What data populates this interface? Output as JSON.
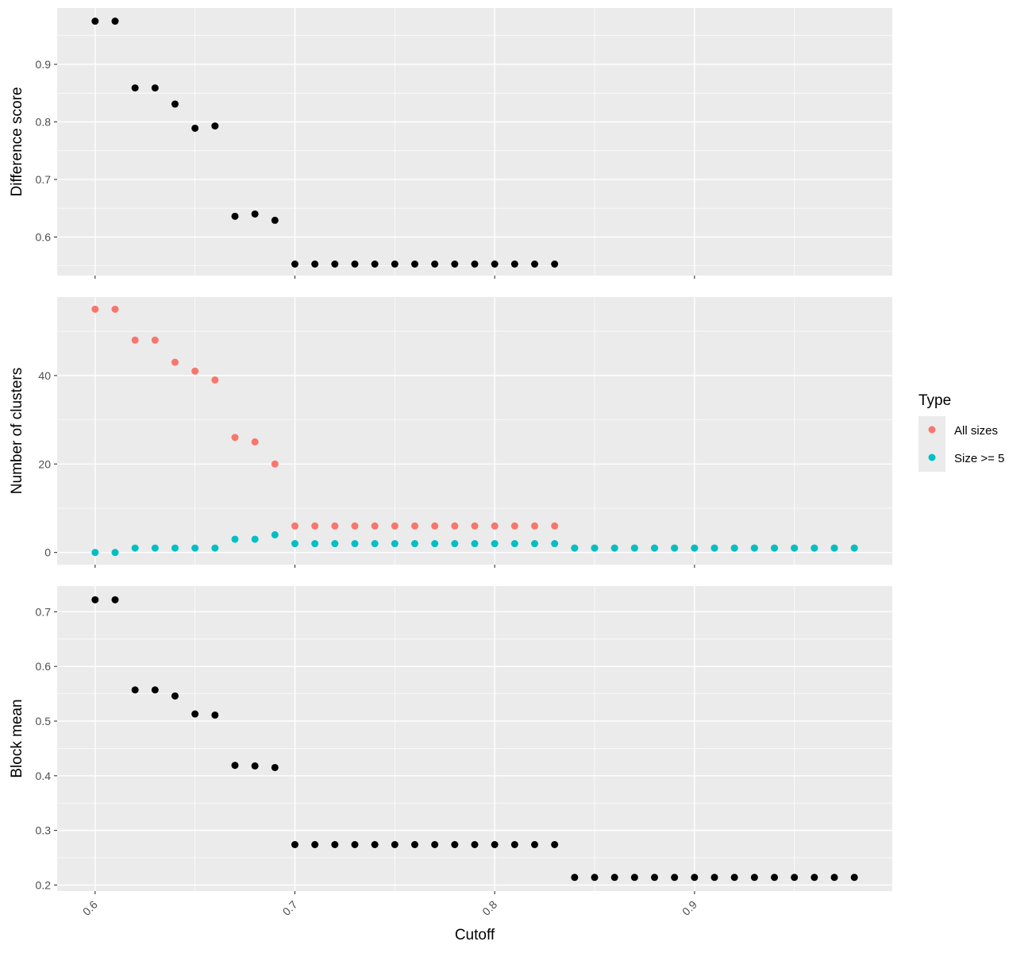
{
  "chart_data": {
    "type": "scatter",
    "x_axis": {
      "label": "Cutoff",
      "range": [
        0.581,
        0.999
      ],
      "ticks": [
        0.6,
        0.7,
        0.8,
        0.9
      ],
      "tick_labels": [
        "0.6",
        "0.7",
        "0.8",
        "0.9"
      ],
      "tick_label_angle": -45
    },
    "x": [
      0.6,
      0.61,
      0.62,
      0.63,
      0.64,
      0.65,
      0.66,
      0.67,
      0.68,
      0.69,
      0.7,
      0.71,
      0.72,
      0.73,
      0.74,
      0.75,
      0.76,
      0.77,
      0.78,
      0.79,
      0.8,
      0.81,
      0.82,
      0.83,
      0.84,
      0.85,
      0.86,
      0.87,
      0.88,
      0.89,
      0.9,
      0.91,
      0.92,
      0.93,
      0.94,
      0.95,
      0.96,
      0.97,
      0.98
    ],
    "grid": true,
    "panels": [
      {
        "ylabel": "Difference score",
        "ylim": [
          0.533,
          0.998
        ],
        "y_ticks": [
          0.6,
          0.7,
          0.8,
          0.9
        ],
        "y_tick_labels": [
          "0.6",
          "0.7",
          "0.8",
          "0.9"
        ],
        "series": [
          {
            "color": "#000000",
            "values": [
              0.975,
              0.975,
              0.859,
              0.859,
              0.831,
              0.789,
              0.793,
              0.636,
              0.64,
              0.629,
              0.553,
              0.553,
              0.553,
              0.553,
              0.553,
              0.553,
              0.553,
              0.553,
              0.553,
              0.553,
              0.553,
              0.553,
              0.553,
              0.553,
              null,
              null,
              null,
              null,
              null,
              null,
              null,
              null,
              null,
              null,
              null,
              null,
              null,
              null,
              null
            ]
          }
        ]
      },
      {
        "ylabel": "Number of clusters",
        "ylim": [
          -2.75,
          57.75
        ],
        "y_ticks": [
          0,
          20,
          40
        ],
        "y_tick_labels": [
          "0",
          "20",
          "40"
        ],
        "series": [
          {
            "name": "All sizes",
            "color": "#F8766D",
            "values": [
              55,
              55,
              48,
              48,
              43,
              41,
              39,
              26,
              25,
              20,
              6,
              6,
              6,
              6,
              6,
              6,
              6,
              6,
              6,
              6,
              6,
              6,
              6,
              6,
              1,
              1,
              1,
              1,
              1,
              1,
              1,
              1,
              1,
              1,
              1,
              1,
              1,
              1,
              1
            ]
          },
          {
            "name": "Size >= 5",
            "color": "#00BFC4",
            "values": [
              0,
              0,
              1,
              1,
              1,
              1,
              1,
              3,
              3,
              4,
              2,
              2,
              2,
              2,
              2,
              2,
              2,
              2,
              2,
              2,
              2,
              2,
              2,
              2,
              1,
              1,
              1,
              1,
              1,
              1,
              1,
              1,
              1,
              1,
              1,
              1,
              1,
              1,
              1
            ]
          }
        ]
      },
      {
        "ylabel": "Block mean",
        "ylim": [
          0.189,
          0.747
        ],
        "y_ticks": [
          0.2,
          0.3,
          0.4,
          0.5,
          0.6,
          0.7
        ],
        "y_tick_labels": [
          "0.2",
          "0.3",
          "0.4",
          "0.5",
          "0.6",
          "0.7"
        ],
        "series": [
          {
            "color": "#000000",
            "values": [
              0.722,
              0.722,
              0.557,
              0.557,
              0.546,
              0.513,
              0.511,
              0.419,
              0.418,
              0.415,
              0.274,
              0.274,
              0.274,
              0.274,
              0.274,
              0.274,
              0.274,
              0.274,
              0.274,
              0.274,
              0.274,
              0.274,
              0.274,
              0.274,
              0.214,
              0.214,
              0.214,
              0.214,
              0.214,
              0.214,
              0.214,
              0.214,
              0.214,
              0.214,
              0.214,
              0.214,
              0.214,
              0.214,
              0.214
            ]
          }
        ]
      }
    ],
    "legend": {
      "title": "Type",
      "placement": "right",
      "entries": [
        {
          "label": "All sizes",
          "color": "#F8766D"
        },
        {
          "label": "Size >= 5",
          "color": "#00BFC4"
        }
      ]
    },
    "colors": {
      "panel_background": "#EBEBEB",
      "gridline": "#FFFFFF",
      "tick": "#333333",
      "tick_label": "#4D4D4D"
    }
  }
}
